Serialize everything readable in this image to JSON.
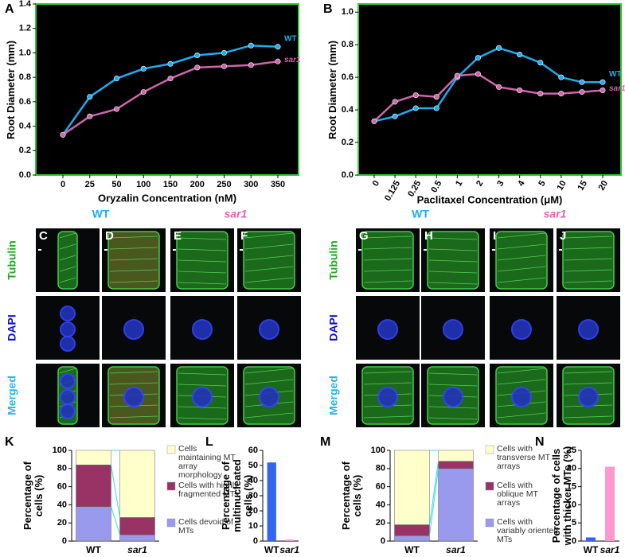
{
  "chart_data": [
    {
      "type": "line",
      "panel_label": "A",
      "y_label": "Root Diameter (mm)",
      "x_label": "Oryzalin Concentration (nM)",
      "categories": [
        "0",
        "25",
        "50",
        "100",
        "150",
        "200",
        "250",
        "300",
        "350"
      ],
      "ylim": [
        0,
        1.4
      ],
      "yticks": [
        {
          "value": 0,
          "label": "0.0"
        },
        0.2,
        0.4,
        0.6,
        0.8,
        {
          "value": 1,
          "label": "1.0"
        },
        1.2,
        1.4
      ],
      "background": "#000000",
      "frame_color": "#33cc33",
      "series": [
        {
          "name": "WT",
          "color": "#22aaee",
          "italic": false,
          "values": [
            0.33,
            0.64,
            0.79,
            0.87,
            0.91,
            0.98,
            1.0,
            1.06,
            1.05
          ]
        },
        {
          "name": "sar1",
          "color": "#cc66aa",
          "italic": true,
          "values": [
            0.33,
            0.48,
            0.54,
            0.68,
            0.79,
            0.88,
            0.89,
            0.9,
            0.93
          ]
        }
      ]
    },
    {
      "type": "line",
      "panel_label": "B",
      "y_label": "Root Diameter (mm)",
      "x_label": "Paclitaxel Concentration (μM)",
      "categories": [
        "0",
        "0.125",
        "0.25",
        "0.5",
        "1",
        "2",
        "3",
        "4",
        "5",
        "10",
        "15",
        "20"
      ],
      "ylim": [
        0,
        1.05
      ],
      "yticks": [
        {
          "value": 0,
          "label": "0.0"
        },
        0.2,
        0.4,
        0.6,
        0.8,
        {
          "value": 1,
          "label": "1.0"
        }
      ],
      "background": "#000000",
      "frame_color": "#33cc33",
      "series": [
        {
          "name": "WT",
          "color": "#22aaee",
          "italic": false,
          "values": [
            0.33,
            0.36,
            0.41,
            0.41,
            0.6,
            0.72,
            0.78,
            0.74,
            0.69,
            0.6,
            0.57,
            0.57
          ]
        },
        {
          "name": "sar1",
          "color": "#cc66aa",
          "italic": true,
          "values": [
            0.33,
            0.45,
            0.49,
            0.48,
            0.61,
            0.62,
            0.54,
            0.52,
            0.5,
            0.5,
            0.51,
            0.52
          ]
        }
      ]
    },
    {
      "type": "stacked_bar",
      "panel_label": "K",
      "y_label": "Percentage of cells (%)",
      "categories": [
        "WT",
        "sar1"
      ],
      "category_styles": [
        "normal",
        "italic"
      ],
      "ylim": [
        0,
        100
      ],
      "yticks": [
        0,
        20,
        40,
        60,
        80,
        100
      ],
      "connector_color": "#33dddd",
      "series": [
        {
          "name": "Cells devoid of MTs",
          "color": "#9999ee",
          "values": [
            38,
            7
          ]
        },
        {
          "name": "Cells with highly fragmented MTs",
          "color": "#993366",
          "values": [
            46,
            19
          ]
        },
        {
          "name": "Cells maintaining MT array morphology",
          "color": "#ffffcc",
          "values": [
            16,
            74
          ]
        }
      ]
    },
    {
      "type": "bar",
      "panel_label": "L",
      "y_label": "Percentage of multinucleated cells (%)",
      "categories": [
        "WT",
        "sar1"
      ],
      "category_styles": [
        "normal",
        "italic"
      ],
      "ylim": [
        0,
        60
      ],
      "yticks": [
        0,
        10,
        20,
        30,
        40,
        50,
        60
      ],
      "values": [
        52,
        1
      ],
      "colors": [
        "#3366ee",
        "#ff99cc"
      ]
    },
    {
      "type": "stacked_bar",
      "panel_label": "M",
      "y_label": "Percentage of cells (%)",
      "categories": [
        "WT",
        "sar1"
      ],
      "category_styles": [
        "normal",
        "italic"
      ],
      "ylim": [
        0,
        100
      ],
      "yticks": [
        0,
        20,
        40,
        60,
        80,
        100
      ],
      "connector_color": "#33dddd",
      "series": [
        {
          "name": "Cells with variably oriented MTs",
          "color": "#9999ee",
          "values": [
            6,
            80
          ]
        },
        {
          "name": "Cells with oblique MT arrays",
          "color": "#993366",
          "values": [
            12,
            8
          ]
        },
        {
          "name": "Cells with transverse MT arrays",
          "color": "#ffffcc",
          "values": [
            82,
            12
          ]
        }
      ]
    },
    {
      "type": "bar",
      "panel_label": "N",
      "y_label": "Percentage of cells with thicker MTs (%)",
      "categories": [
        "WT",
        "sar1"
      ],
      "category_styles": [
        "normal",
        "italic"
      ],
      "ylim": [
        0,
        25
      ],
      "yticks": [
        0,
        5,
        10,
        15,
        20,
        25
      ],
      "values": [
        1,
        20.5
      ],
      "colors": [
        "#3366ee",
        "#ff99cc"
      ]
    }
  ],
  "micrographs": {
    "headers": [
      {
        "text": "WT",
        "color": "#22aaee",
        "italic": false
      },
      {
        "text": "sar1",
        "color": "#dd66aa",
        "italic": true
      },
      {
        "text": "WT",
        "color": "#22aaee",
        "italic": false
      },
      {
        "text": "sar1",
        "color": "#dd66aa",
        "italic": true
      }
    ],
    "row_labels": [
      {
        "text": "Tubulin",
        "color": "#22aa22"
      },
      {
        "text": "DAPI",
        "color": "#1111cc"
      },
      {
        "text": "Merged",
        "color": "#22bbdd"
      }
    ],
    "panels": [
      "C",
      "D",
      "E",
      "F",
      "G",
      "H",
      "I",
      "J"
    ]
  }
}
